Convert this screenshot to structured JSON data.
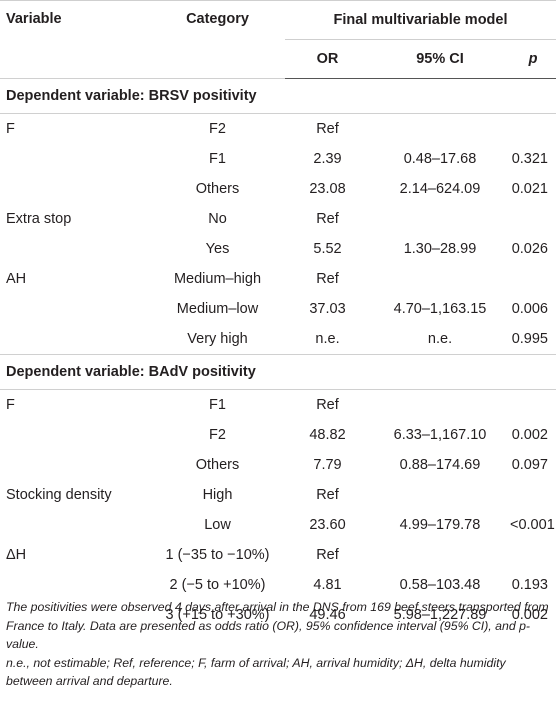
{
  "header": {
    "variable": "Variable",
    "category": "Category",
    "model": "Final multivariable model",
    "or": "OR",
    "ci": "95% CI",
    "p": "p"
  },
  "sections": [
    {
      "title": "Dependent variable: BRSV positivity",
      "rows": [
        {
          "variable": "F",
          "category": "F2",
          "or": "Ref",
          "ci": "",
          "p": ""
        },
        {
          "variable": "",
          "category": "F1",
          "or": "2.39",
          "ci": "0.48–17.68",
          "p": "0.321"
        },
        {
          "variable": "",
          "category": "Others",
          "or": "23.08",
          "ci": "2.14–624.09",
          "p": "0.021"
        },
        {
          "variable": "Extra stop",
          "category": "No",
          "or": "Ref",
          "ci": "",
          "p": ""
        },
        {
          "variable": "",
          "category": "Yes",
          "or": "5.52",
          "ci": "1.30–28.99",
          "p": "0.026"
        },
        {
          "variable": "AH",
          "category": "Medium–high",
          "or": "Ref",
          "ci": "",
          "p": ""
        },
        {
          "variable": "",
          "category": "Medium–low",
          "or": "37.03",
          "ci": "4.70–1,163.15",
          "p": "0.006"
        },
        {
          "variable": "",
          "category": "Very high",
          "or": "n.e.",
          "ci": "n.e.",
          "p": "0.995"
        }
      ]
    },
    {
      "title": "Dependent variable: BAdV positivity",
      "rows": [
        {
          "variable": "F",
          "category": "F1",
          "or": "Ref",
          "ci": "",
          "p": ""
        },
        {
          "variable": "",
          "category": "F2",
          "or": "48.82",
          "ci": "6.33–1,167.10",
          "p": "0.002"
        },
        {
          "variable": "",
          "category": "Others",
          "or": "7.79",
          "ci": "0.88–174.69",
          "p": "0.097"
        },
        {
          "variable": "Stocking density",
          "category": "High",
          "or": "Ref",
          "ci": "",
          "p": ""
        },
        {
          "variable": "",
          "category": "Low",
          "or": "23.60",
          "ci": "4.99–179.78",
          "p": "<0.001"
        },
        {
          "variable": "ΔH",
          "category": "1 (−35 to −10%)",
          "or": "Ref",
          "ci": "",
          "p": ""
        },
        {
          "variable": "",
          "category": "2 (−5 to +10%)",
          "or": "4.81",
          "ci": "0.58–103.48",
          "p": "0.193"
        },
        {
          "variable": "",
          "category": "3 (+15 to +30%)",
          "or": "49.46",
          "ci": "5.98–1,227.89",
          "p": "0.002"
        }
      ]
    }
  ],
  "footnotes": {
    "line1": "The positivities were observed 4 days after arrival in the DNS from 169 beef steers transported from France to Italy. Data are presented as odds ratio (OR), 95% confidence interval (95% CI), and p-value.",
    "line2": "n.e., not estimable; Ref, reference; F, farm of arrival; AH, arrival humidity; ΔH, delta humidity between arrival and departure."
  }
}
